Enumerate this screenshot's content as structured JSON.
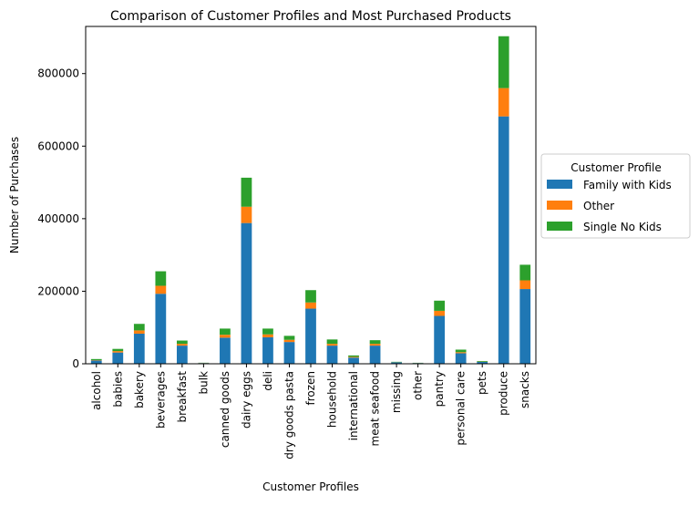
{
  "chart_data": {
    "type": "bar",
    "stacked": true,
    "title": "Comparison of Customer Profiles and Most Purchased Products",
    "xlabel": "Customer Profiles",
    "ylabel": "Number of Purchases",
    "ylim": [
      0,
      930000
    ],
    "yticks": [
      0,
      200000,
      400000,
      600000,
      800000
    ],
    "ytick_labels": [
      "0",
      "200000",
      "400000",
      "600000",
      "800000"
    ],
    "grid": false,
    "legend": {
      "title": "Customer Profile",
      "placement": "right-outside"
    },
    "categories": [
      "alcohol",
      "babies",
      "bakery",
      "beverages",
      "breakfast",
      "bulk",
      "canned goods",
      "dairy eggs",
      "deli",
      "dry goods pasta",
      "frozen",
      "household",
      "international",
      "meat seafood",
      "missing",
      "other",
      "pantry",
      "personal care",
      "pets",
      "produce",
      "snacks"
    ],
    "series": [
      {
        "name": "Family with Kids",
        "color": "#1f77b4",
        "values": [
          9000,
          31000,
          83000,
          193000,
          50000,
          2000,
          72000,
          388000,
          73000,
          60000,
          152000,
          50000,
          17000,
          50000,
          4000,
          2000,
          132000,
          29000,
          5000,
          682000,
          206000
        ]
      },
      {
        "name": "Other",
        "color": "#ff7f0e",
        "values": [
          1000,
          4000,
          9000,
          22000,
          5000,
          300,
          8000,
          45000,
          8000,
          6000,
          17000,
          5000,
          2000,
          5000,
          400,
          200,
          14000,
          3000,
          600,
          78000,
          24000
        ]
      },
      {
        "name": "Single No Kids",
        "color": "#2ca02c",
        "values": [
          3000,
          6000,
          18000,
          40000,
          9000,
          500,
          17000,
          80000,
          16000,
          11000,
          34000,
          12000,
          4000,
          10000,
          1000,
          500,
          28000,
          7000,
          2000,
          143000,
          43000
        ]
      }
    ]
  }
}
